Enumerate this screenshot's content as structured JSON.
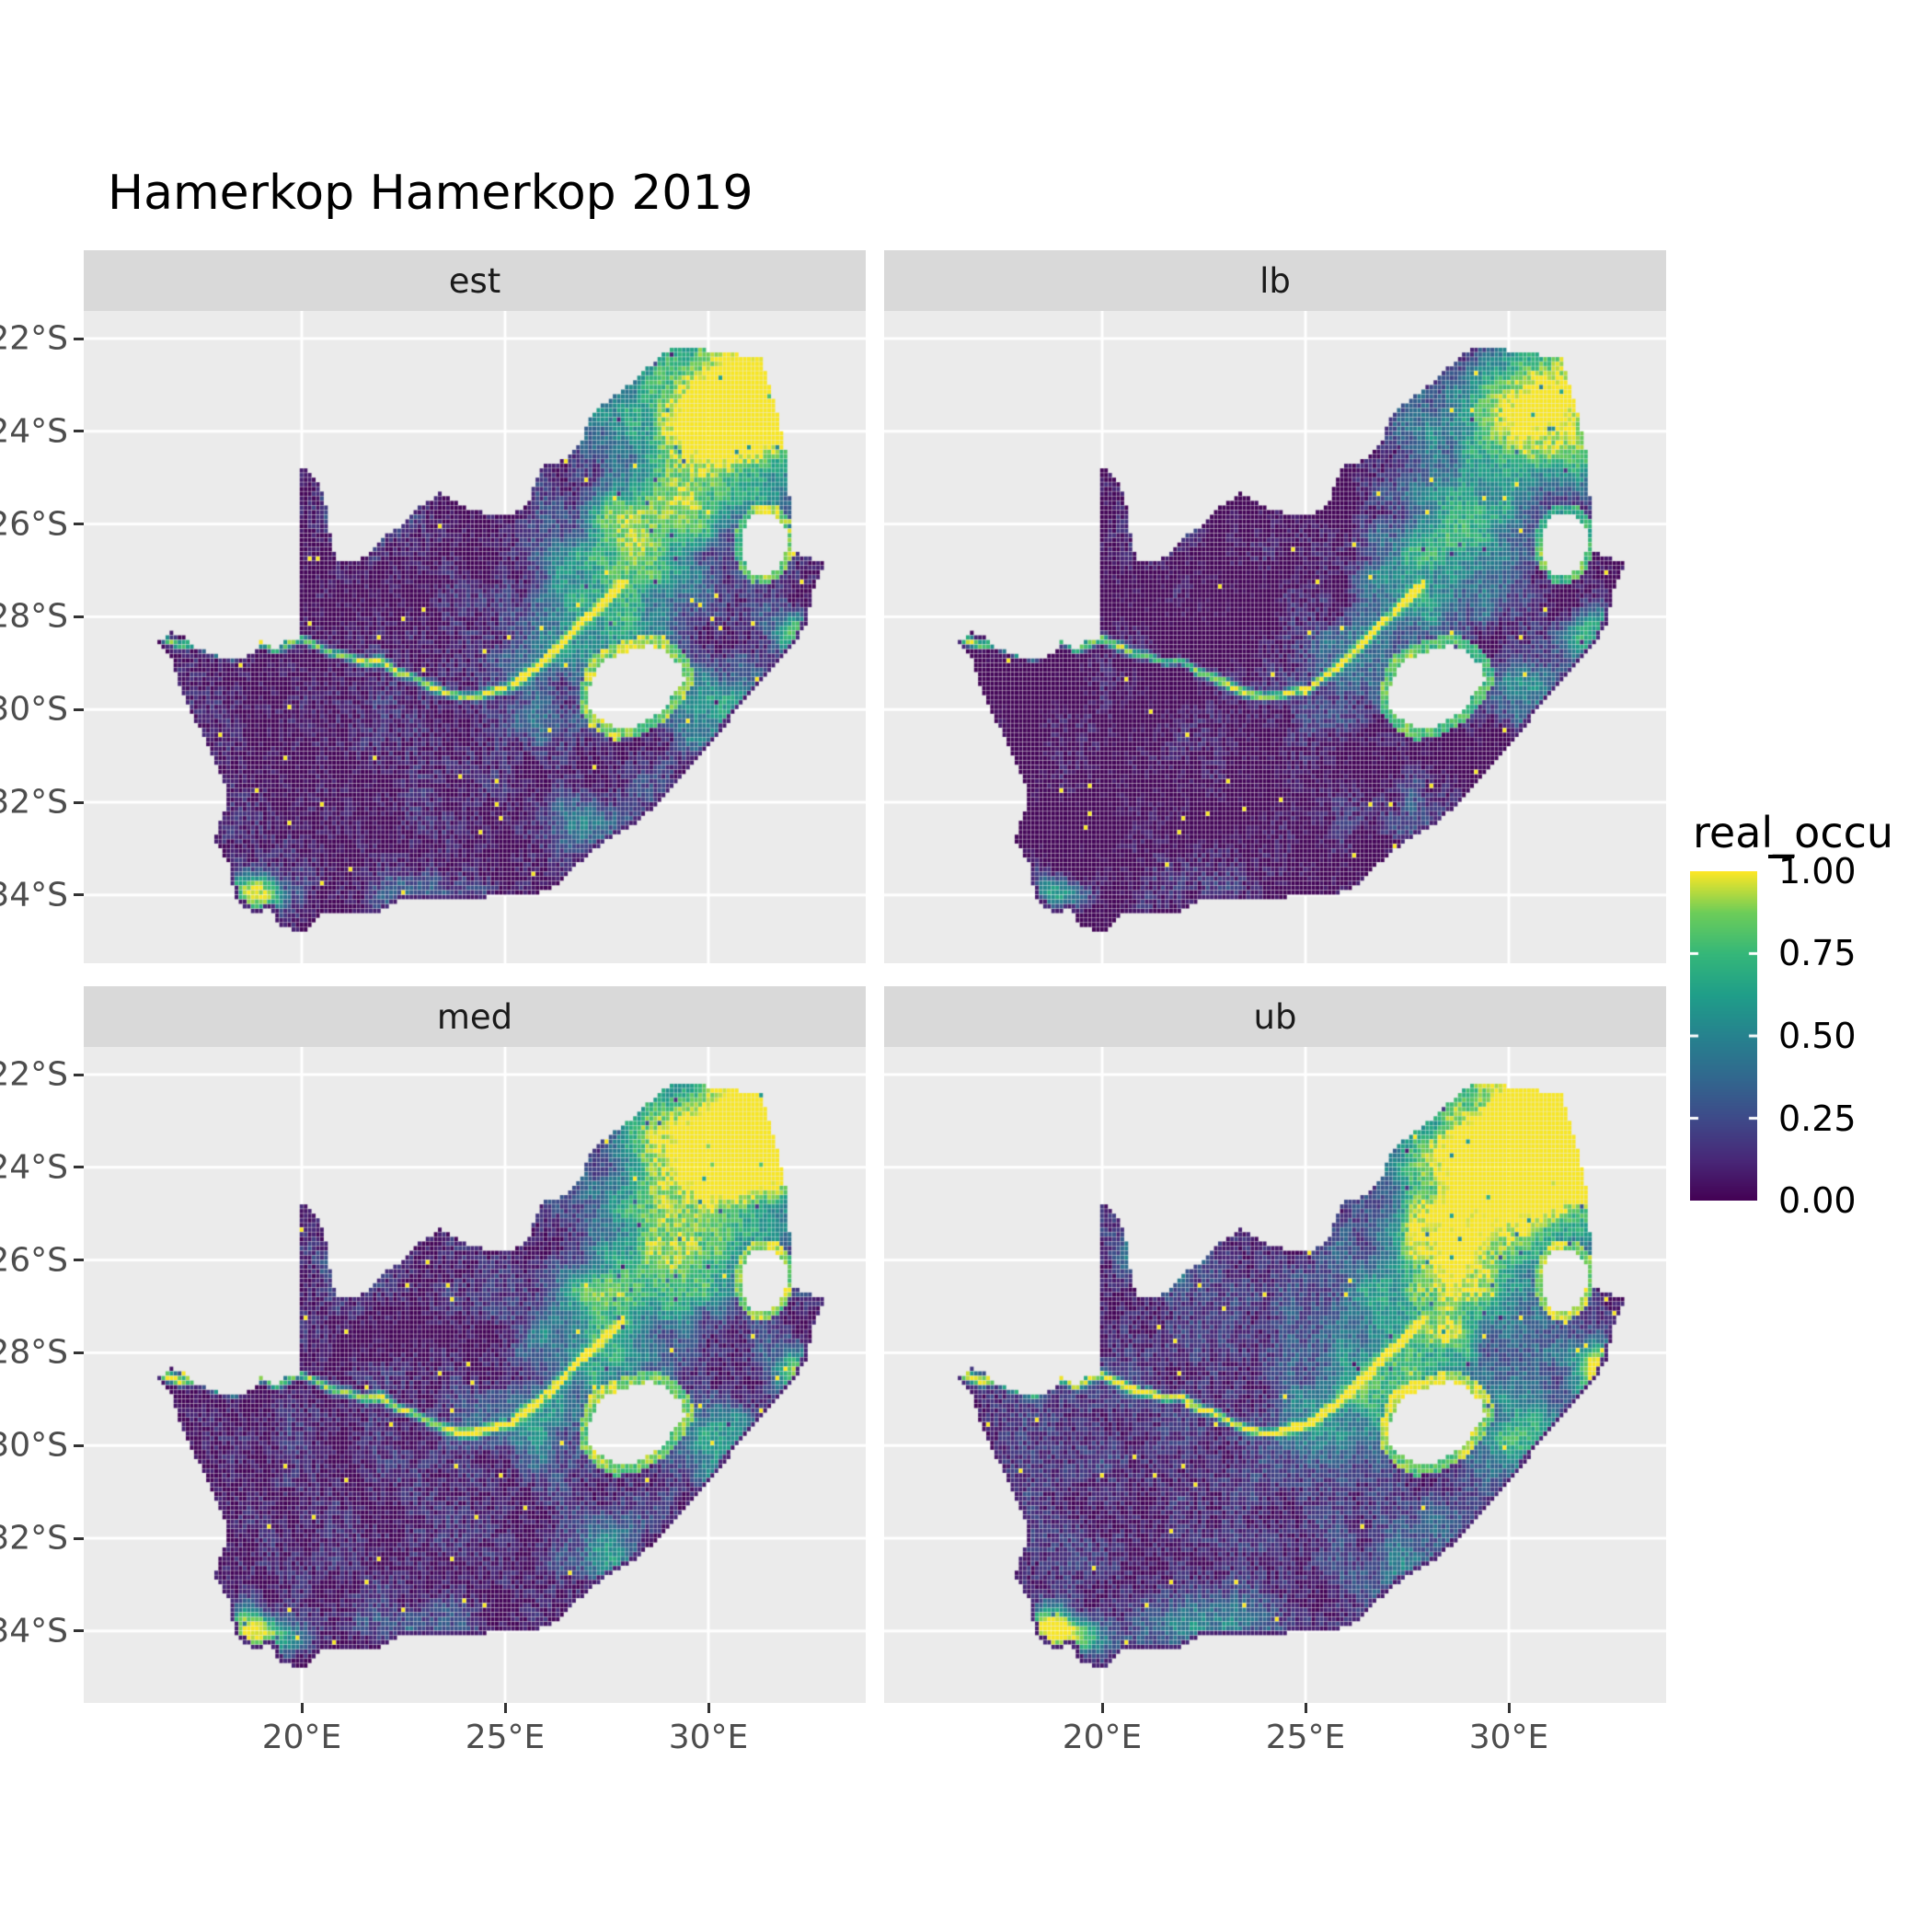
{
  "title": "Hamerkop Hamerkop 2019",
  "chart_data": {
    "type": "heatmap",
    "title": "Hamerkop Hamerkop 2019",
    "facets": [
      {
        "label": "est",
        "seed": 11,
        "offset": 0,
        "gain": 1.0
      },
      {
        "label": "lb",
        "seed": 23,
        "offset": -0.07,
        "gain": 0.8
      },
      {
        "label": "med",
        "seed": 37,
        "offset": 0.01,
        "gain": 1.02
      },
      {
        "label": "ub",
        "seed": 51,
        "offset": 0.07,
        "gain": 1.2
      }
    ],
    "legend": {
      "title": "real_occu",
      "ticks": [
        {
          "label": "1.00",
          "value": 1.0
        },
        {
          "label": "0.75",
          "value": 0.75
        },
        {
          "label": "0.50",
          "value": 0.5
        },
        {
          "label": "0.25",
          "value": 0.25
        },
        {
          "label": "0.00",
          "value": 0.0
        }
      ]
    },
    "x_axis": {
      "ticks": [
        {
          "label": "20°E",
          "lon": 20
        },
        {
          "label": "25°E",
          "lon": 25
        },
        {
          "label": "30°E",
          "lon": 30
        }
      ]
    },
    "y_axis": {
      "ticks": [
        {
          "label": "22°S",
          "lat": -22
        },
        {
          "label": "24°S",
          "lat": -24
        },
        {
          "label": "26°S",
          "lat": -26
        },
        {
          "label": "28°S",
          "lat": -28
        },
        {
          "label": "30°S",
          "lat": -30
        },
        {
          "label": "32°S",
          "lat": -32
        },
        {
          "label": "34°S",
          "lat": -34
        }
      ]
    },
    "colormap": {
      "name": "viridis",
      "stops": [
        [
          68,
          1,
          84
        ],
        [
          72,
          40,
          120
        ],
        [
          62,
          74,
          137
        ],
        [
          49,
          104,
          142
        ],
        [
          38,
          130,
          142
        ],
        [
          31,
          158,
          137
        ],
        [
          53,
          183,
          121
        ],
        [
          109,
          205,
          89
        ],
        [
          253,
          231,
          37
        ]
      ]
    },
    "colors": {
      "panel_bg": "#EBEBEB",
      "strip_bg": "#D9D9D9",
      "grid": "#FFFFFF",
      "axis_text": "#4D4D4D",
      "tick": "#333333",
      "strip_text": "#1A1A1A",
      "title": "#000000",
      "background": "#FFFFFF"
    },
    "value_range": [
      0,
      1
    ],
    "region": {
      "name": "South Africa",
      "cell_deg": 0.1,
      "boundary": [
        [
          16.45,
          -28.58
        ],
        [
          16.79,
          -28.32
        ],
        [
          17.05,
          -28.4
        ],
        [
          17.35,
          -28.68
        ],
        [
          17.72,
          -28.77
        ],
        [
          18.06,
          -28.87
        ],
        [
          18.45,
          -28.9
        ],
        [
          18.75,
          -28.82
        ],
        [
          19.02,
          -28.52
        ],
        [
          19.3,
          -28.72
        ],
        [
          19.6,
          -28.52
        ],
        [
          19.99,
          -28.45
        ],
        [
          19.99,
          -24.77
        ],
        [
          20.35,
          -25.03
        ],
        [
          20.58,
          -25.45
        ],
        [
          20.64,
          -26.0
        ],
        [
          20.84,
          -26.8
        ],
        [
          21.3,
          -26.84
        ],
        [
          21.7,
          -26.65
        ],
        [
          22.05,
          -26.22
        ],
        [
          22.55,
          -26.0
        ],
        [
          22.88,
          -25.62
        ],
        [
          23.45,
          -25.32
        ],
        [
          24.0,
          -25.65
        ],
        [
          24.7,
          -25.8
        ],
        [
          25.4,
          -25.74
        ],
        [
          25.6,
          -25.48
        ],
        [
          25.91,
          -24.74
        ],
        [
          26.4,
          -24.63
        ],
        [
          26.85,
          -24.28
        ],
        [
          27.12,
          -23.65
        ],
        [
          27.72,
          -23.22
        ],
        [
          28.2,
          -22.88
        ],
        [
          29.05,
          -22.22
        ],
        [
          29.45,
          -22.17
        ],
        [
          30.25,
          -22.3
        ],
        [
          31.3,
          -22.4
        ],
        [
          31.7,
          -23.6
        ],
        [
          31.9,
          -24.4
        ],
        [
          31.98,
          -25.1
        ],
        [
          32.02,
          -25.6
        ],
        [
          32.05,
          -26.2
        ],
        [
          32.1,
          -26.6
        ],
        [
          32.88,
          -26.85
        ],
        [
          32.58,
          -27.45
        ],
        [
          32.45,
          -28.1
        ],
        [
          32.1,
          -28.65
        ],
        [
          31.6,
          -29.15
        ],
        [
          31.05,
          -29.65
        ],
        [
          30.55,
          -30.2
        ],
        [
          30.1,
          -30.75
        ],
        [
          29.45,
          -31.4
        ],
        [
          28.8,
          -32.0
        ],
        [
          28.1,
          -32.55
        ],
        [
          27.4,
          -32.9
        ],
        [
          26.85,
          -33.3
        ],
        [
          26.4,
          -33.75
        ],
        [
          25.65,
          -34.02
        ],
        [
          25.0,
          -33.98
        ],
        [
          24.2,
          -34.1
        ],
        [
          23.4,
          -34.1
        ],
        [
          22.55,
          -34.05
        ],
        [
          21.9,
          -34.4
        ],
        [
          21.0,
          -34.4
        ],
        [
          20.5,
          -34.45
        ],
        [
          20.0,
          -34.83
        ],
        [
          19.4,
          -34.62
        ],
        [
          19.28,
          -34.3
        ],
        [
          18.85,
          -34.4
        ],
        [
          18.45,
          -34.18
        ],
        [
          18.32,
          -33.9
        ],
        [
          18.22,
          -33.35
        ],
        [
          17.85,
          -32.78
        ],
        [
          18.18,
          -32.05
        ],
        [
          18.1,
          -31.55
        ],
        [
          17.6,
          -30.6
        ],
        [
          17.05,
          -29.65
        ],
        [
          16.8,
          -28.95
        ]
      ],
      "lesotho": [
        [
          27.05,
          -29.6
        ],
        [
          27.32,
          -29.02
        ],
        [
          27.58,
          -28.9
        ],
        [
          28.1,
          -28.72
        ],
        [
          28.6,
          -28.62
        ],
        [
          28.98,
          -28.78
        ],
        [
          29.33,
          -29.06
        ],
        [
          29.42,
          -29.35
        ],
        [
          29.12,
          -29.72
        ],
        [
          28.82,
          -30.05
        ],
        [
          28.15,
          -30.38
        ],
        [
          27.75,
          -30.42
        ],
        [
          27.35,
          -30.22
        ],
        [
          27.05,
          -29.92
        ]
      ],
      "eswatini": [
        [
          30.82,
          -26.32
        ],
        [
          30.95,
          -25.95
        ],
        [
          31.25,
          -25.75
        ],
        [
          31.65,
          -25.8
        ],
        [
          31.9,
          -26.05
        ],
        [
          31.95,
          -26.45
        ],
        [
          31.75,
          -26.95
        ],
        [
          31.4,
          -27.15
        ],
        [
          31.05,
          -27.05
        ],
        [
          30.85,
          -26.7
        ]
      ],
      "river": [
        [
          16.6,
          -28.48
        ],
        [
          17.0,
          -28.62
        ],
        [
          17.45,
          -28.58
        ],
        [
          17.9,
          -28.78
        ],
        [
          18.35,
          -28.88
        ],
        [
          18.8,
          -28.6
        ],
        [
          19.1,
          -28.55
        ],
        [
          19.35,
          -28.72
        ],
        [
          19.65,
          -28.6
        ],
        [
          19.95,
          -28.47
        ],
        [
          20.35,
          -28.62
        ],
        [
          20.75,
          -28.8
        ],
        [
          21.15,
          -28.86
        ],
        [
          21.55,
          -29.0
        ],
        [
          21.95,
          -28.95
        ],
        [
          22.35,
          -29.2
        ],
        [
          22.75,
          -29.3
        ],
        [
          23.15,
          -29.5
        ],
        [
          23.55,
          -29.65
        ],
        [
          23.95,
          -29.73
        ],
        [
          24.35,
          -29.72
        ],
        [
          24.75,
          -29.6
        ],
        [
          25.1,
          -29.55
        ],
        [
          25.45,
          -29.3
        ],
        [
          25.8,
          -29.1
        ],
        [
          26.15,
          -28.8
        ],
        [
          26.5,
          -28.5
        ],
        [
          26.85,
          -28.15
        ],
        [
          27.2,
          -27.9
        ],
        [
          27.55,
          -27.6
        ],
        [
          27.9,
          -27.3
        ]
      ],
      "coast": [
        [
          32.88,
          -26.85
        ],
        [
          32.58,
          -27.45
        ],
        [
          32.45,
          -28.1
        ],
        [
          32.1,
          -28.65
        ],
        [
          31.6,
          -29.15
        ],
        [
          31.05,
          -29.65
        ],
        [
          30.55,
          -30.2
        ],
        [
          30.1,
          -30.75
        ],
        [
          29.45,
          -31.4
        ],
        [
          28.8,
          -32.0
        ],
        [
          28.1,
          -32.55
        ],
        [
          27.4,
          -32.9
        ],
        [
          26.85,
          -33.3
        ],
        [
          26.4,
          -33.75
        ],
        [
          25.65,
          -34.02
        ],
        [
          25.0,
          -33.98
        ],
        [
          24.2,
          -34.1
        ],
        [
          23.4,
          -34.1
        ],
        [
          22.55,
          -34.05
        ],
        [
          21.9,
          -34.4
        ],
        [
          21.0,
          -34.4
        ],
        [
          20.5,
          -34.45
        ],
        [
          20.0,
          -34.83
        ],
        [
          19.4,
          -34.62
        ],
        [
          19.28,
          -34.3
        ],
        [
          18.85,
          -34.4
        ],
        [
          18.45,
          -34.18
        ],
        [
          18.32,
          -33.9
        ],
        [
          18.22,
          -33.35
        ],
        [
          17.85,
          -32.78
        ],
        [
          18.18,
          -32.05
        ],
        [
          18.1,
          -31.55
        ],
        [
          17.6,
          -30.6
        ],
        [
          17.05,
          -29.65
        ],
        [
          16.8,
          -28.95
        ],
        [
          16.45,
          -28.58
        ]
      ],
      "blobs": [
        {
          "a": 0.8,
          "x": 31.6,
          "y": -22.9,
          "sx": 2.4,
          "sy": 1.9
        },
        {
          "a": 0.85,
          "x": 30.2,
          "y": -23.8,
          "sx": 2.5,
          "sy": 1.4
        },
        {
          "a": 0.62,
          "x": 28.9,
          "y": -25.9,
          "sx": 1.8,
          "sy": 1.3
        },
        {
          "a": 0.5,
          "x": 27.6,
          "y": -27.6,
          "sx": 2.0,
          "sy": 1.5
        },
        {
          "a": 0.3,
          "x": 25.8,
          "y": -29.3,
          "sx": 1.6,
          "sy": 1.2
        },
        {
          "a": 0.55,
          "x": 30.3,
          "y": -29.9,
          "sx": 1.2,
          "sy": 1.0
        },
        {
          "a": 0.75,
          "x": 32.15,
          "y": -28.35,
          "sx": 0.7,
          "sy": 0.55
        },
        {
          "a": 0.35,
          "x": 27.5,
          "y": -32.5,
          "sx": 1.4,
          "sy": 0.8
        },
        {
          "a": 0.5,
          "x": 21.4,
          "y": -25.9,
          "sx": 0.85,
          "sy": 0.6
        },
        {
          "a": 0.85,
          "x": 18.75,
          "y": -33.9,
          "sx": 0.5,
          "sy": 0.45
        },
        {
          "a": 0.5,
          "x": 19.4,
          "y": -34.1,
          "sx": 0.55,
          "sy": 0.35
        },
        {
          "a": 0.25,
          "x": 22.8,
          "y": -33.9,
          "sx": 1.6,
          "sy": 0.5
        }
      ]
    }
  }
}
